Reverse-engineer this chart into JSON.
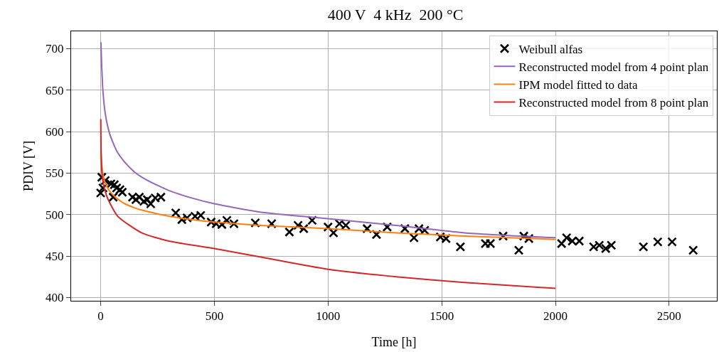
{
  "chart_data": {
    "type": "line",
    "title": "400 V  4 kHz  200 °C",
    "xlabel": "Time [h]",
    "ylabel": "PDIV [V]",
    "xlim": [
      -130,
      2710
    ],
    "xticks": [
      0,
      500,
      1000,
      1500,
      2000,
      2500
    ],
    "ylim": [
      396,
      721
    ],
    "yticks": [
      400,
      450,
      500,
      550,
      600,
      650,
      700
    ],
    "grid": true,
    "legend": "top right",
    "series": [
      {
        "name": "Weibull alfas",
        "type": "scatter",
        "marker": "cross",
        "color": "#000000",
        "x": [
          0,
          10,
          20,
          45,
          60,
          70,
          85,
          95,
          55,
          5,
          140,
          155,
          170,
          190,
          205,
          220,
          240,
          265,
          330,
          357,
          380,
          415,
          440,
          486,
          508,
          533,
          555,
          586,
          680,
          752,
          830,
          868,
          893,
          930,
          1000,
          1024,
          1050,
          1078,
          1172,
          1213,
          1260,
          1338,
          1378,
          1400,
          1425,
          1494,
          1519,
          1582,
          1692,
          1714,
          1770,
          1839,
          1861,
          1883,
          2027,
          2049,
          2074,
          2105,
          2168,
          2193,
          2221,
          2246,
          2387,
          2450,
          2513,
          2606
        ],
        "values": [
          526,
          532,
          541,
          537,
          536,
          532,
          530,
          527,
          521,
          545,
          521,
          518,
          521,
          516,
          518,
          513,
          520,
          521,
          502,
          494,
          496,
          498,
          499,
          491,
          489,
          488,
          493,
          489,
          490,
          489,
          479,
          487,
          483,
          493,
          485,
          478,
          489,
          487,
          483,
          476,
          485,
          483,
          472,
          483,
          481,
          473,
          471,
          461,
          465,
          465,
          474,
          457,
          474,
          471,
          465,
          472,
          468,
          468,
          461,
          463,
          459,
          463,
          461,
          467,
          467,
          457
        ]
      },
      {
        "name": "Reconstructed model from 4 point plan",
        "marker": "none",
        "color": "#9467bd",
        "x": [
          1,
          5,
          10,
          20,
          40,
          70,
          100,
          150,
          200,
          300,
          400,
          500,
          700,
          1000,
          1300,
          1600,
          2000
        ],
        "values": [
          708,
          676,
          649,
          622,
          597,
          577,
          565,
          551,
          542,
          529,
          520,
          513,
          503,
          495,
          487,
          478,
          472
        ]
      },
      {
        "name": "IPM model fitted to data",
        "marker": "none",
        "color": "#ff7f0e",
        "x": [
          1,
          5,
          10,
          20,
          40,
          70,
          100,
          150,
          200,
          300,
          400,
          500,
          700,
          1000,
          1300,
          1600,
          2000
        ],
        "values": [
          578,
          560,
          548,
          538,
          528,
          520,
          514,
          508,
          504,
          498,
          494,
          491,
          487,
          483,
          478,
          474,
          470
        ]
      },
      {
        "name": "Reconstructed model from 8 point plan",
        "marker": "none",
        "color": "#d62728",
        "x": [
          0.5,
          2,
          5,
          10,
          30,
          75,
          180,
          300,
          500,
          700,
          1000,
          1300,
          1600,
          2000
        ],
        "values": [
          615,
          575,
          552,
          540,
          520,
          498,
          478,
          468,
          459,
          449,
          434,
          425,
          418,
          411
        ]
      }
    ]
  }
}
